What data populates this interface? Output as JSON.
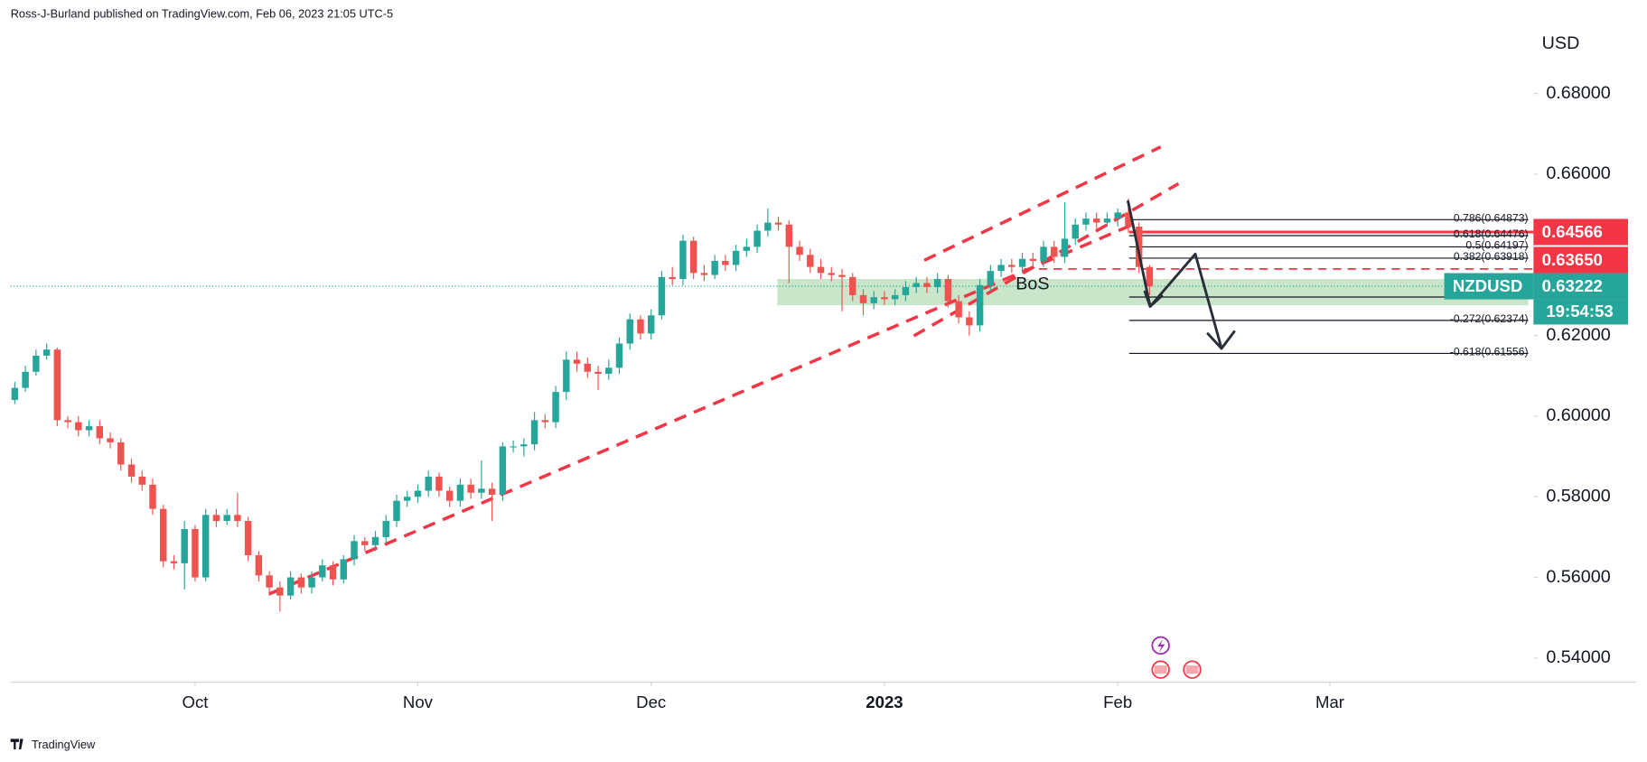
{
  "header": {
    "byline": "Ross-J-Burland published on TradingView.com, Feb 06, 2023 21:05 UTC-5",
    "logo": "TradingView"
  },
  "chart_data": {
    "type": "candlestick",
    "symbol": "NZDUSD",
    "currency": "USD",
    "up_color": "#26a69a",
    "down_color": "#ef5350",
    "open": [
      0.604,
      0.607,
      0.611,
      0.615,
      0.6165,
      0.599,
      0.5985,
      0.5965,
      0.5975,
      0.5945,
      0.5935,
      0.588,
      0.585,
      0.583,
      0.577,
      0.564,
      0.5635,
      0.572,
      0.56,
      0.5755,
      0.574,
      0.5755,
      0.574,
      0.5655,
      0.5605,
      0.5575,
      0.5555,
      0.56,
      0.5575,
      0.56,
      0.563,
      0.5595,
      0.5645,
      0.569,
      0.568,
      0.57,
      0.574,
      0.579,
      0.58,
      0.5815,
      0.585,
      0.5815,
      0.579,
      0.583,
      0.581,
      0.582,
      0.5805,
      0.5925,
      0.5925,
      0.593,
      0.599,
      0.5985,
      0.606,
      0.614,
      0.613,
      0.611,
      0.6105,
      0.612,
      0.618,
      0.624,
      0.6205,
      0.625,
      0.6345,
      0.634,
      0.6435,
      0.6355,
      0.635,
      0.6385,
      0.6375,
      0.641,
      0.642,
      0.646,
      0.648,
      0.6475,
      0.642,
      0.64,
      0.637,
      0.6355,
      0.635,
      0.6345,
      0.63,
      0.628,
      0.6295,
      0.629,
      0.63,
      0.632,
      0.633,
      0.632,
      0.634,
      0.6285,
      0.6245,
      0.6225,
      0.6325,
      0.636,
      0.6375,
      0.637,
      0.639,
      0.6385,
      0.642,
      0.6395,
      0.644,
      0.6475,
      0.649,
      0.648,
      0.649,
      0.6505,
      0.647,
      0.637
    ],
    "high": [
      0.6085,
      0.6125,
      0.6165,
      0.618,
      0.617,
      0.6,
      0.6,
      0.599,
      0.599,
      0.596,
      0.5945,
      0.5895,
      0.5865,
      0.5845,
      0.578,
      0.5655,
      0.574,
      0.573,
      0.577,
      0.577,
      0.577,
      0.581,
      0.575,
      0.5665,
      0.5615,
      0.559,
      0.5615,
      0.561,
      0.5615,
      0.5645,
      0.564,
      0.5655,
      0.5705,
      0.57,
      0.5715,
      0.5755,
      0.5805,
      0.5815,
      0.583,
      0.5865,
      0.586,
      0.5825,
      0.5845,
      0.5845,
      0.589,
      0.5835,
      0.5935,
      0.594,
      0.5945,
      0.601,
      0.6005,
      0.6075,
      0.616,
      0.616,
      0.6145,
      0.6125,
      0.614,
      0.6195,
      0.6255,
      0.625,
      0.6265,
      0.636,
      0.637,
      0.645,
      0.6445,
      0.6375,
      0.64,
      0.64,
      0.6425,
      0.644,
      0.6475,
      0.6515,
      0.6495,
      0.6485,
      0.6435,
      0.6415,
      0.639,
      0.637,
      0.6365,
      0.6355,
      0.6315,
      0.631,
      0.631,
      0.6315,
      0.6335,
      0.6345,
      0.6345,
      0.6355,
      0.635,
      0.63,
      0.626,
      0.634,
      0.6375,
      0.639,
      0.639,
      0.6405,
      0.6405,
      0.6435,
      0.6435,
      0.653,
      0.649,
      0.6505,
      0.6505,
      0.6505,
      0.6515,
      0.654,
      0.648,
      0.6375
    ],
    "low": [
      0.603,
      0.606,
      0.61,
      0.614,
      0.5975,
      0.597,
      0.595,
      0.595,
      0.593,
      0.592,
      0.5865,
      0.5835,
      0.5815,
      0.5755,
      0.5625,
      0.562,
      0.557,
      0.559,
      0.559,
      0.5725,
      0.573,
      0.5725,
      0.564,
      0.559,
      0.5555,
      0.5515,
      0.5545,
      0.556,
      0.556,
      0.559,
      0.558,
      0.5585,
      0.563,
      0.5665,
      0.5665,
      0.5685,
      0.5725,
      0.5775,
      0.5785,
      0.58,
      0.58,
      0.5775,
      0.5775,
      0.5795,
      0.5795,
      0.574,
      0.579,
      0.591,
      0.59,
      0.5915,
      0.597,
      0.597,
      0.604,
      0.611,
      0.6095,
      0.6065,
      0.609,
      0.6105,
      0.6165,
      0.619,
      0.619,
      0.624,
      0.6325,
      0.6325,
      0.634,
      0.6335,
      0.634,
      0.636,
      0.636,
      0.6395,
      0.6405,
      0.6445,
      0.646,
      0.633,
      0.6385,
      0.6355,
      0.634,
      0.6335,
      0.626,
      0.6285,
      0.625,
      0.6265,
      0.6275,
      0.6275,
      0.6285,
      0.6305,
      0.6305,
      0.6305,
      0.627,
      0.623,
      0.62,
      0.621,
      0.631,
      0.6345,
      0.6355,
      0.6355,
      0.637,
      0.637,
      0.638,
      0.638,
      0.6425,
      0.646,
      0.6465,
      0.647,
      0.647,
      0.6455,
      0.6355,
      0.63
    ],
    "close": [
      0.607,
      0.611,
      0.615,
      0.6165,
      0.599,
      0.5985,
      0.5965,
      0.5975,
      0.5945,
      0.5935,
      0.588,
      0.585,
      0.583,
      0.577,
      0.564,
      0.5635,
      0.572,
      0.56,
      0.5755,
      0.574,
      0.5755,
      0.574,
      0.5655,
      0.5605,
      0.5575,
      0.5555,
      0.56,
      0.5575,
      0.56,
      0.563,
      0.5595,
      0.5645,
      0.569,
      0.568,
      0.57,
      0.574,
      0.579,
      0.58,
      0.5815,
      0.585,
      0.5815,
      0.579,
      0.583,
      0.581,
      0.582,
      0.5805,
      0.5925,
      0.5925,
      0.593,
      0.599,
      0.5985,
      0.606,
      0.614,
      0.613,
      0.611,
      0.6105,
      0.612,
      0.618,
      0.624,
      0.6205,
      0.625,
      0.6345,
      0.634,
      0.6435,
      0.6355,
      0.635,
      0.6385,
      0.6375,
      0.641,
      0.642,
      0.646,
      0.648,
      0.6475,
      0.642,
      0.64,
      0.637,
      0.6355,
      0.635,
      0.6345,
      0.63,
      0.628,
      0.6295,
      0.629,
      0.63,
      0.632,
      0.633,
      0.632,
      0.634,
      0.6285,
      0.6245,
      0.6225,
      0.6325,
      0.636,
      0.6375,
      0.637,
      0.639,
      0.6385,
      0.642,
      0.6395,
      0.644,
      0.6475,
      0.649,
      0.648,
      0.649,
      0.6505,
      0.647,
      0.637,
      0.6322
    ],
    "xlim": [
      -0.4,
      143.2
    ],
    "xticks": [
      {
        "value": 17,
        "label": "Oct"
      },
      {
        "value": 38,
        "label": "Nov"
      },
      {
        "value": 60,
        "label": "Dec"
      },
      {
        "value": 82,
        "label": "2023",
        "emphasis": true
      },
      {
        "value": 104,
        "label": "Feb"
      },
      {
        "value": 124,
        "label": "Mar"
      }
    ],
    "ylim": [
      0.534,
      0.698
    ],
    "yticks": [
      {
        "value": 0.54,
        "label": "0.54000"
      },
      {
        "value": 0.56,
        "label": "0.56000"
      },
      {
        "value": 0.58,
        "label": "0.58000"
      },
      {
        "value": 0.6,
        "label": "0.60000"
      },
      {
        "value": 0.62,
        "label": "0.62000"
      },
      {
        "value": 0.64,
        "label": "0.64000"
      },
      {
        "value": 0.66,
        "label": "0.66000"
      },
      {
        "value": 0.68,
        "label": "0.68000"
      }
    ],
    "last_price": {
      "value": 0.63222,
      "label": "0.63222"
    },
    "countdown": "19:54:53",
    "price_lines": [
      {
        "value": 0.64566,
        "label": "0.64566",
        "color": "#f23645",
        "style": "solid"
      },
      {
        "value": 0.6365,
        "label": "0.63650",
        "color": "#f23645",
        "style": "dashed"
      }
    ],
    "fib_levels": [
      {
        "value": 0.64873,
        "label": "0.786(0.64873)"
      },
      {
        "value": 0.64476,
        "label": "0.618(0.64476)"
      },
      {
        "value": 0.64197,
        "label": "0.5(0.64197)"
      },
      {
        "value": 0.63918,
        "label": "0.382(0.63918)"
      },
      {
        "value": 0.62374,
        "label": "-0.272(0.62374)"
      },
      {
        "value": 0.61556,
        "label": "-0.618(0.61556)"
      }
    ],
    "annotation": "BoS"
  }
}
